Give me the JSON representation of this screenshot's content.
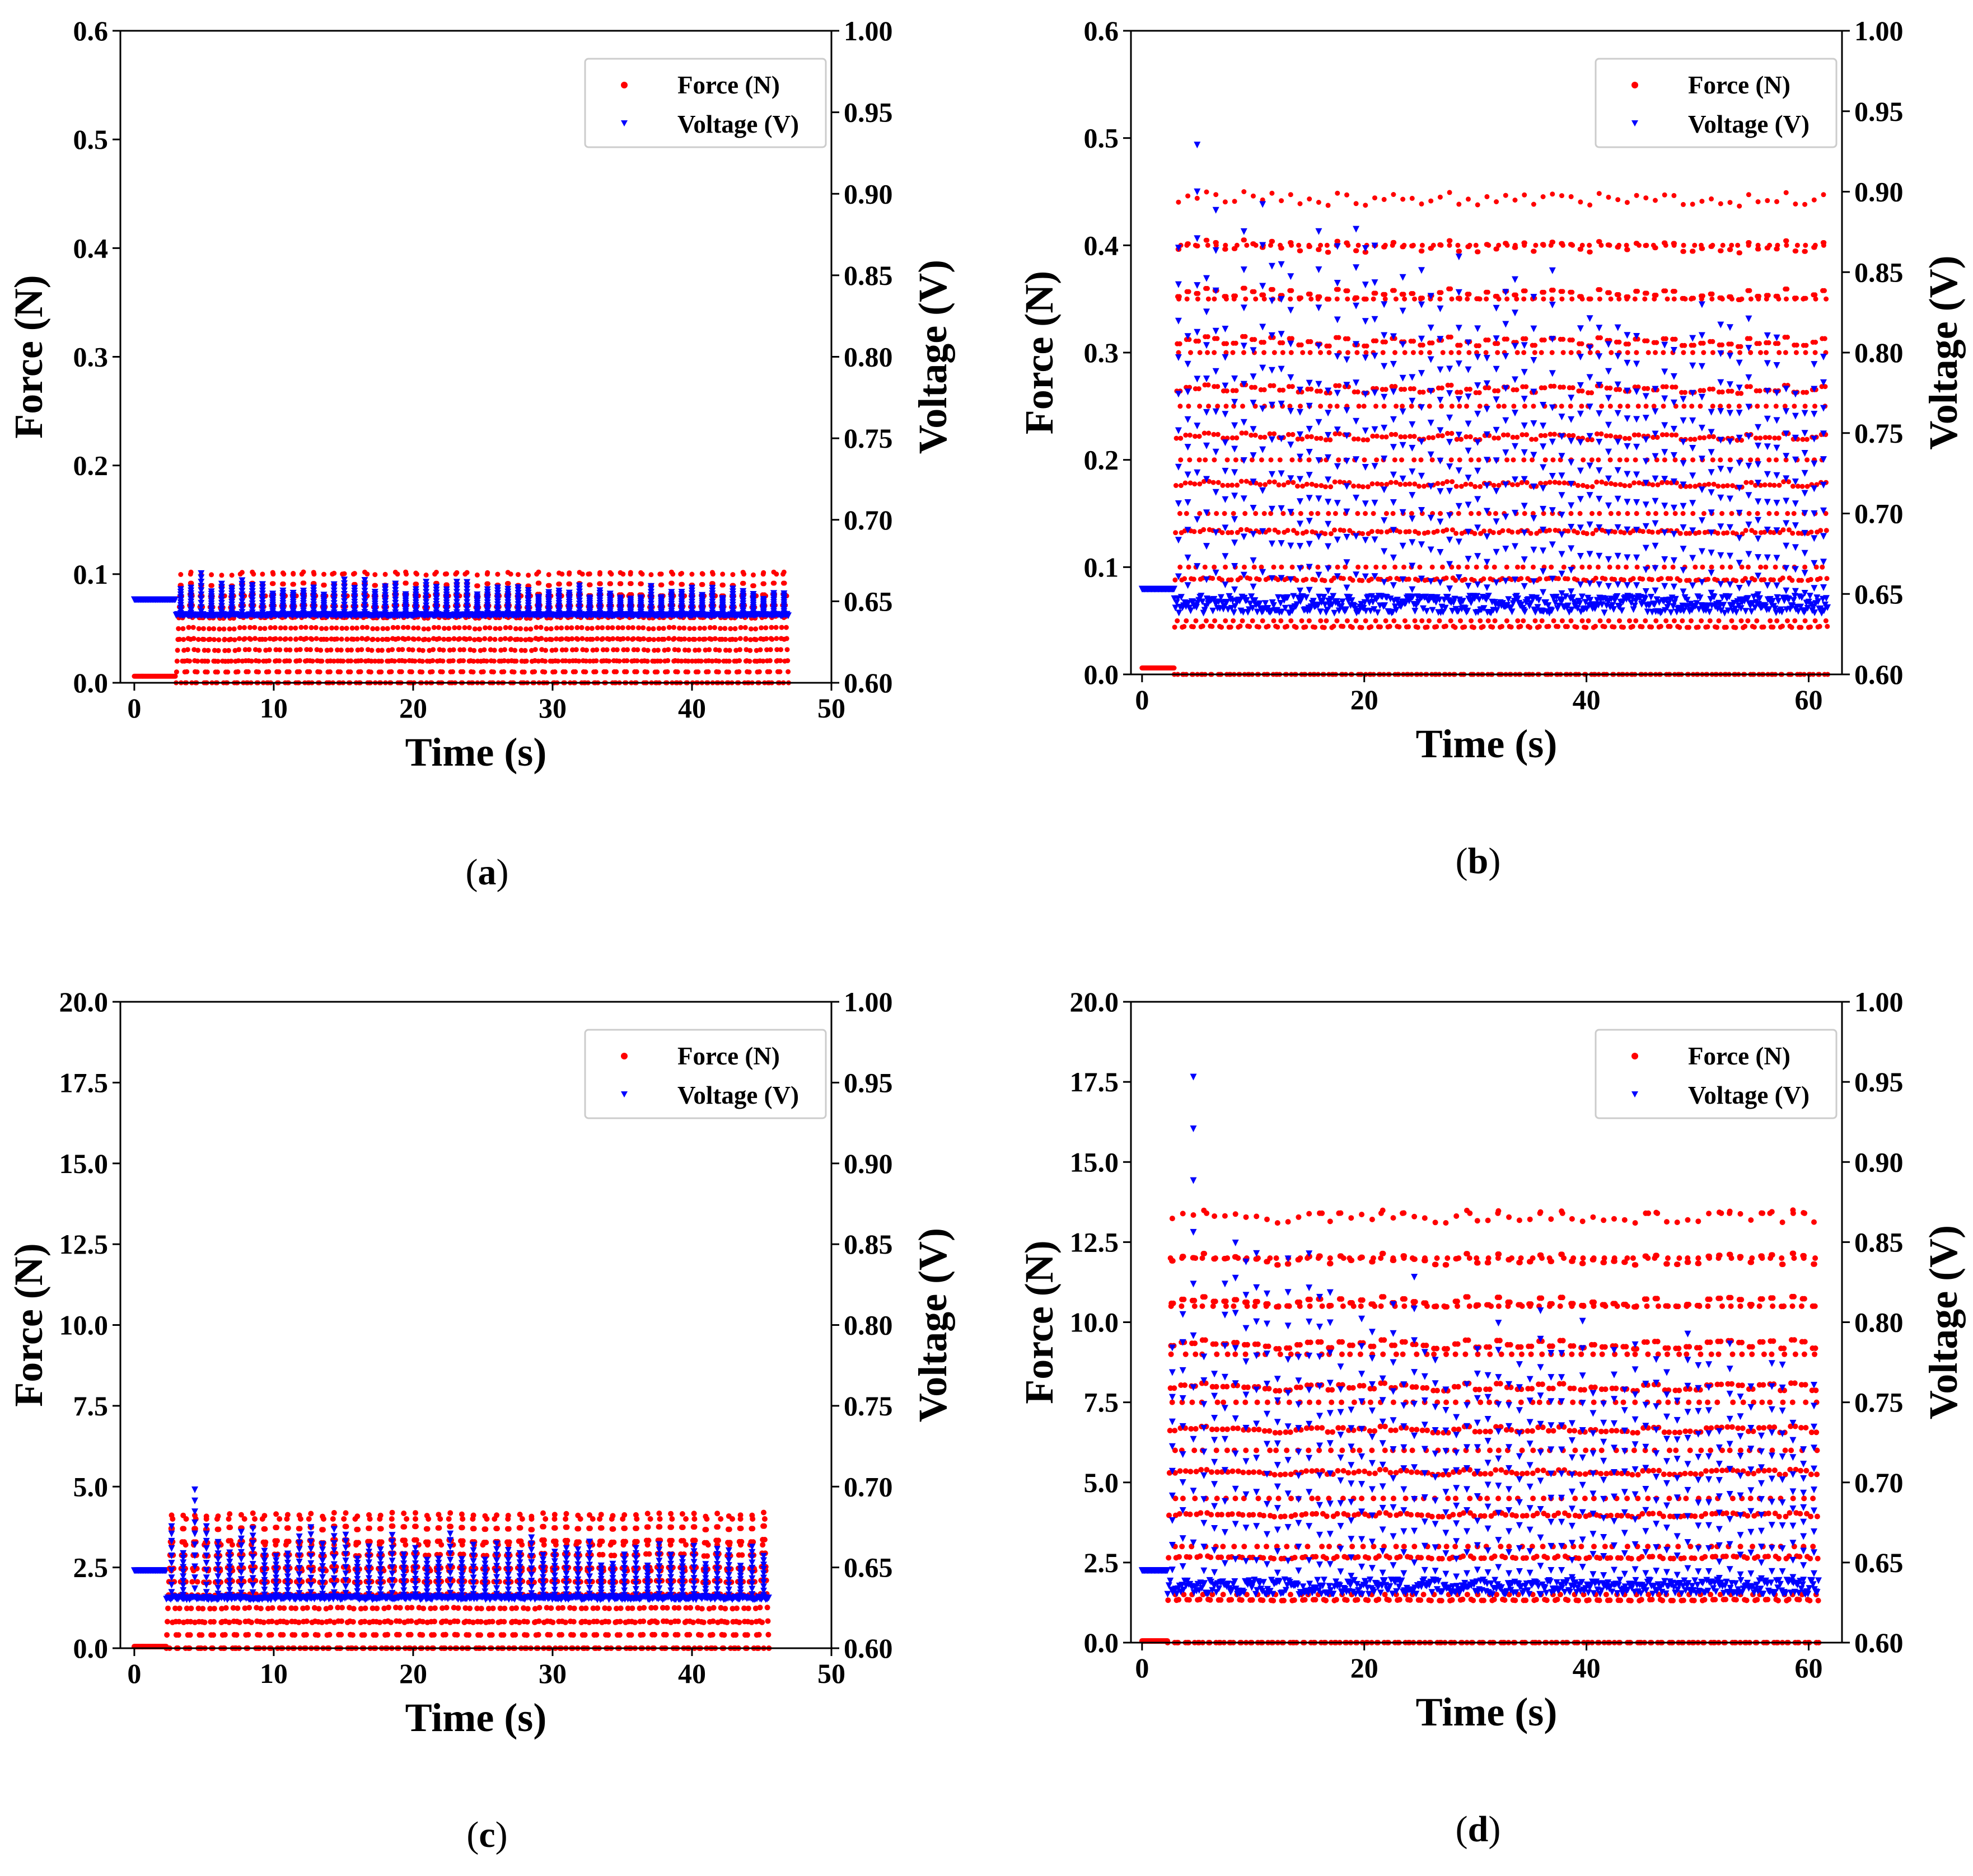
{
  "colors": {
    "force": "#ff0000",
    "voltage": "#0000ff"
  },
  "chart_data": [
    {
      "id": "a",
      "type": "scatter",
      "caption": "a",
      "xlabel": "Time (s)",
      "ylabel_left": "Force (N)",
      "ylabel_right": "Voltage (V)",
      "xlim": [
        -1,
        50
      ],
      "xticks": [
        0,
        10,
        20,
        30,
        40,
        50
      ],
      "xtick_labels": [
        "0",
        "10",
        "20",
        "30",
        "40",
        "50"
      ],
      "ylim_left": [
        0,
        0.6
      ],
      "yticks_left": [
        "0.0",
        "0.1",
        "0.2",
        "0.3",
        "0.4",
        "0.5",
        "0.6"
      ],
      "ylim_right": [
        0.6,
        1.0
      ],
      "yticks_right": [
        "0.60",
        "0.65",
        "0.70",
        "0.75",
        "0.80",
        "0.85",
        "0.90",
        "0.95",
        "1.00"
      ],
      "legend": [
        "Force (N)",
        "Voltage (V)"
      ],
      "series": [
        {
          "name": "Force (N)",
          "axis": "left",
          "marker": "dot",
          "baseline": 0.006,
          "start": 3.0,
          "end": 47.0,
          "cycles": 60,
          "peak": 0.102,
          "levels": [
            0.0,
            0.02,
            0.04,
            0.06,
            0.08,
            0.1
          ]
        },
        {
          "name": "Voltage (V)",
          "axis": "right",
          "marker": "triangle",
          "baseline": 0.651,
          "start": 3.0,
          "end": 47.0,
          "cycles": 60,
          "low": 0.641,
          "high": 0.666,
          "spike": 0.667
        }
      ]
    },
    {
      "id": "b",
      "type": "scatter",
      "caption": "b",
      "xlabel": "Time (s)",
      "ylabel_left": "Force (N)",
      "ylabel_right": "Voltage (V)",
      "xlim": [
        -1,
        63
      ],
      "xticks": [
        0,
        20,
        40,
        60
      ],
      "xtick_labels": [
        "0",
        "20",
        "40",
        "60"
      ],
      "ylim_left": [
        0,
        0.6
      ],
      "yticks_left": [
        "0.0",
        "0.1",
        "0.2",
        "0.3",
        "0.4",
        "0.5",
        "0.6"
      ],
      "ylim_right": [
        0.6,
        1.0
      ],
      "yticks_right": [
        "0.60",
        "0.65",
        "0.70",
        "0.75",
        "0.80",
        "0.85",
        "0.90",
        "0.95",
        "1.00"
      ],
      "legend": [
        "Force (N)",
        "Voltage (V)"
      ],
      "series": [
        {
          "name": "Force (N)",
          "axis": "left",
          "marker": "dot",
          "baseline": 0.006,
          "start": 2.9,
          "end": 61.8,
          "cycles": 70,
          "peak": 0.45,
          "levels": [
            0.0,
            0.05,
            0.1,
            0.15,
            0.2,
            0.25,
            0.3,
            0.35,
            0.4,
            0.45
          ]
        },
        {
          "name": "Voltage (V)",
          "axis": "right",
          "marker": "triangle",
          "baseline": 0.653,
          "start": 2.9,
          "end": 61.8,
          "cycles": 70,
          "low": 0.638,
          "high": 0.905,
          "spike": 0.929
        }
      ]
    },
    {
      "id": "c",
      "type": "scatter",
      "caption": "c",
      "xlabel": "Time (s)",
      "ylabel_left": "Force (N)",
      "ylabel_right": "Voltage (V)",
      "xlim": [
        -1,
        50
      ],
      "xticks": [
        0,
        10,
        20,
        30,
        40,
        50
      ],
      "xtick_labels": [
        "0",
        "10",
        "20",
        "30",
        "40",
        "50"
      ],
      "ylim_left": [
        0,
        20
      ],
      "yticks_left": [
        "0.0",
        "2.5",
        "5.0",
        "7.5",
        "10.0",
        "12.5",
        "15.0",
        "17.5",
        "20.0"
      ],
      "ylim_right": [
        0.6,
        1.0
      ],
      "yticks_right": [
        "0.60",
        "0.65",
        "0.70",
        "0.75",
        "0.80",
        "0.85",
        "0.90",
        "0.95",
        "1.00"
      ],
      "legend": [
        "Force (N)",
        "Voltage (V)"
      ],
      "series": [
        {
          "name": "Force (N)",
          "axis": "left",
          "marker": "dot",
          "baseline": 0.05,
          "start": 2.3,
          "end": 45.6,
          "cycles": 52,
          "peak": 4.2,
          "levels": [
            0.0,
            0.8,
            1.6,
            2.4,
            3.2,
            4.0
          ]
        },
        {
          "name": "Voltage (V)",
          "axis": "right",
          "marker": "triangle",
          "baseline": 0.648,
          "start": 2.3,
          "end": 45.6,
          "cycles": 52,
          "low": 0.63,
          "high": 0.68,
          "spike": 0.698
        }
      ]
    },
    {
      "id": "d",
      "type": "scatter",
      "caption": "d",
      "xlabel": "Time (s)",
      "ylabel_left": "Force (N)",
      "ylabel_right": "Voltage (V)",
      "xlim": [
        -1,
        63
      ],
      "xticks": [
        0,
        20,
        40,
        60
      ],
      "xtick_labels": [
        "0",
        "20",
        "40",
        "60"
      ],
      "ylim_left": [
        0,
        20
      ],
      "yticks_left": [
        "0.0",
        "2.5",
        "5.0",
        "7.5",
        "10.0",
        "12.5",
        "15.0",
        "17.5",
        "20.0"
      ],
      "ylim_right": [
        0.6,
        1.0
      ],
      "yticks_right": [
        "0.60",
        "0.65",
        "0.70",
        "0.75",
        "0.80",
        "0.85",
        "0.90",
        "0.95",
        "1.00"
      ],
      "legend": [
        "Force (N)",
        "Voltage (V)"
      ],
      "series": [
        {
          "name": "Force (N)",
          "axis": "left",
          "marker": "dot",
          "baseline": 0.05,
          "start": 2.3,
          "end": 61.0,
          "cycles": 62,
          "peak": 13.5,
          "levels": [
            0.0,
            1.5,
            3.0,
            4.5,
            6.0,
            7.5,
            9.0,
            10.5,
            12.0,
            13.4
          ]
        },
        {
          "name": "Voltage (V)",
          "axis": "right",
          "marker": "triangle",
          "baseline": 0.645,
          "start": 2.3,
          "end": 61.0,
          "cycles": 62,
          "low": 0.63,
          "high": 0.86,
          "spike": 0.953
        }
      ]
    }
  ]
}
